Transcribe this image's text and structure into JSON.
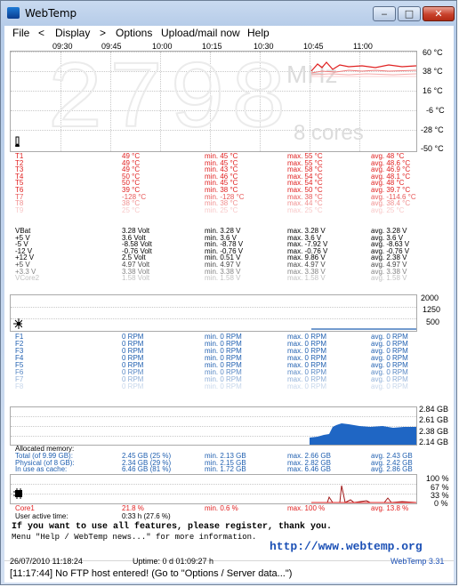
{
  "window": {
    "title": "WebTemp",
    "min_glyph": "‒",
    "max_glyph": "□",
    "close_glyph": "✕"
  },
  "menu": {
    "file": "File",
    "prev": "<",
    "display": "Display",
    "next": ">",
    "options": "Options",
    "upload": "Upload/mail now",
    "help": "Help"
  },
  "time_axis": [
    "09:30",
    "09:45",
    "10:00",
    "10:15",
    "10:30",
    "10:45",
    "11:00"
  ],
  "temp_graph": {
    "big_value": "2798",
    "unit": "MHz",
    "cores": "8 cores",
    "y_labels": [
      "60 °C",
      "38 °C",
      "16 °C",
      "-6 °C",
      "-28 °C",
      "-50 °C"
    ]
  },
  "temps": [
    [
      "T1",
      "49 °C",
      "min. 45 °C",
      "max. 55 °C",
      "avg. 48 °C"
    ],
    [
      "T2",
      "49 °C",
      "min. 45 °C",
      "max. 55 °C",
      "avg. 48.6 °C"
    ],
    [
      "T3",
      "49 °C",
      "min. 43 °C",
      "max. 58 °C",
      "avg. 46.9 °C"
    ],
    [
      "T4",
      "50 °C",
      "min. 46 °C",
      "max. 54 °C",
      "avg. 48.1 °C"
    ],
    [
      "T5",
      "50 °C",
      "min. 45 °C",
      "max. 54 °C",
      "avg. 48 °C"
    ],
    [
      "T6",
      "39 °C",
      "min. 38 °C",
      "max. 50 °C",
      "avg. 39.7 °C"
    ],
    [
      "T7",
      "-128 °C",
      "min. -128 °C",
      "max. 38 °C",
      "avg. -114.6 °C"
    ],
    [
      "T8",
      "38 °C",
      "min. 38 °C",
      "max. 44 °C",
      "avg. 38.4 °C"
    ],
    [
      "T9",
      "25 °C",
      "min. 25 °C",
      "max. 25 °C",
      "avg. 25 °C"
    ]
  ],
  "volts": [
    [
      "VBat",
      "3.28 Volt",
      "min. 3.28 V",
      "max. 3.28 V",
      "avg. 3.28 V"
    ],
    [
      "+5 V",
      "3.6 Volt",
      "min. 3.6 V",
      "max. 3.6 V",
      "avg. 3.6 V"
    ],
    [
      "-5 V",
      "-8.58 Volt",
      "min. -8.78 V",
      "max. -7.92 V",
      "avg. -8.63 V"
    ],
    [
      "-12 V",
      "-0.76 Volt",
      "min. -0.76 V",
      "max. -0.76 V",
      "avg. -0.76 V"
    ],
    [
      "+12 V",
      "2.5 Volt",
      "min. 0.51 V",
      "max. 9.86 V",
      "avg. 2.38 V"
    ],
    [
      "+5 V",
      "4.97 Volt",
      "min. 4.97 V",
      "max. 4.97 V",
      "avg. 4.97 V"
    ],
    [
      "+3.3 V",
      "3.38 Volt",
      "min. 3.38 V",
      "max. 3.38 V",
      "avg. 3.38 V"
    ],
    [
      "VCore2",
      "1.58 Volt",
      "min. 1.58 V",
      "max. 1.58 V",
      "avg. 1.58 V"
    ]
  ],
  "fan_graph": {
    "y_labels": [
      "2000",
      "1250",
      "500"
    ]
  },
  "fans": [
    [
      "F1",
      "0 RPM",
      "min. 0 RPM",
      "max. 0 RPM",
      "avg. 0 RPM"
    ],
    [
      "F2",
      "0 RPM",
      "min. 0 RPM",
      "max. 0 RPM",
      "avg. 0 RPM"
    ],
    [
      "F3",
      "0 RPM",
      "min. 0 RPM",
      "max. 0 RPM",
      "avg. 0 RPM"
    ],
    [
      "F4",
      "0 RPM",
      "min. 0 RPM",
      "max. 0 RPM",
      "avg. 0 RPM"
    ],
    [
      "F5",
      "0 RPM",
      "min. 0 RPM",
      "max. 0 RPM",
      "avg. 0 RPM"
    ],
    [
      "F6",
      "0 RPM",
      "min. 0 RPM",
      "max. 0 RPM",
      "avg. 0 RPM"
    ],
    [
      "F7",
      "0 RPM",
      "min. 0 RPM",
      "max. 0 RPM",
      "avg. 0 RPM"
    ],
    [
      "F8",
      "0 RPM",
      "min. 0 RPM",
      "max. 0 RPM",
      "avg. 0 RPM"
    ]
  ],
  "mem_graph": {
    "y_labels": [
      "2.84 GB",
      "2.61 GB",
      "2.38 GB",
      "2.14 GB"
    ]
  },
  "memory": {
    "header": "Allocated memory:",
    "rows": [
      [
        "Total (of 9.99 GB):",
        "2.45 GB (25 %)",
        "min. 2.13 GB",
        "max. 2.66 GB",
        "avg. 2.43 GB"
      ],
      [
        "Physical (of 8 GB):",
        "2.34 GB (29 %)",
        "min. 2.15 GB",
        "max. 2.82 GB",
        "avg. 2.42 GB"
      ],
      [
        "In use as cache:",
        "6.46 GB (81 %)",
        "min. 1.72 GB",
        "max. 6.46 GB",
        "avg. 2.86 GB"
      ]
    ]
  },
  "cpu_graph": {
    "y_labels": [
      "100 %",
      "67 %",
      "33 %",
      "0 %"
    ]
  },
  "cpu": {
    "row": [
      "Core1",
      "21.8 %",
      "min. 0.6 %",
      "max. 100 %",
      "avg. 13.8 %"
    ],
    "uptime_label": "User active time:",
    "uptime_value": "0:33 h (27.6 %)"
  },
  "notice": {
    "line1": "If you want to use all features, please register, thank you.",
    "line2": "Menu \"Help / WebTemp news...\" for more information.",
    "url": "http://www.webtemp.org"
  },
  "status": {
    "datetime": "26/07/2010 11:18:24",
    "uptime": "Uptime: 0 d 01:09:27 h",
    "version": "WebTemp 3.31",
    "message": "[11:17:44] No FTP host entered! (Go to \"Options / Server data...\")"
  },
  "colors": {
    "temp": "#e02020",
    "volt": "#000000",
    "fan": "#1f5fb0",
    "mem": "#1f5fb0",
    "cpu": "#e02020",
    "mem_fill": "#1f66c4"
  }
}
